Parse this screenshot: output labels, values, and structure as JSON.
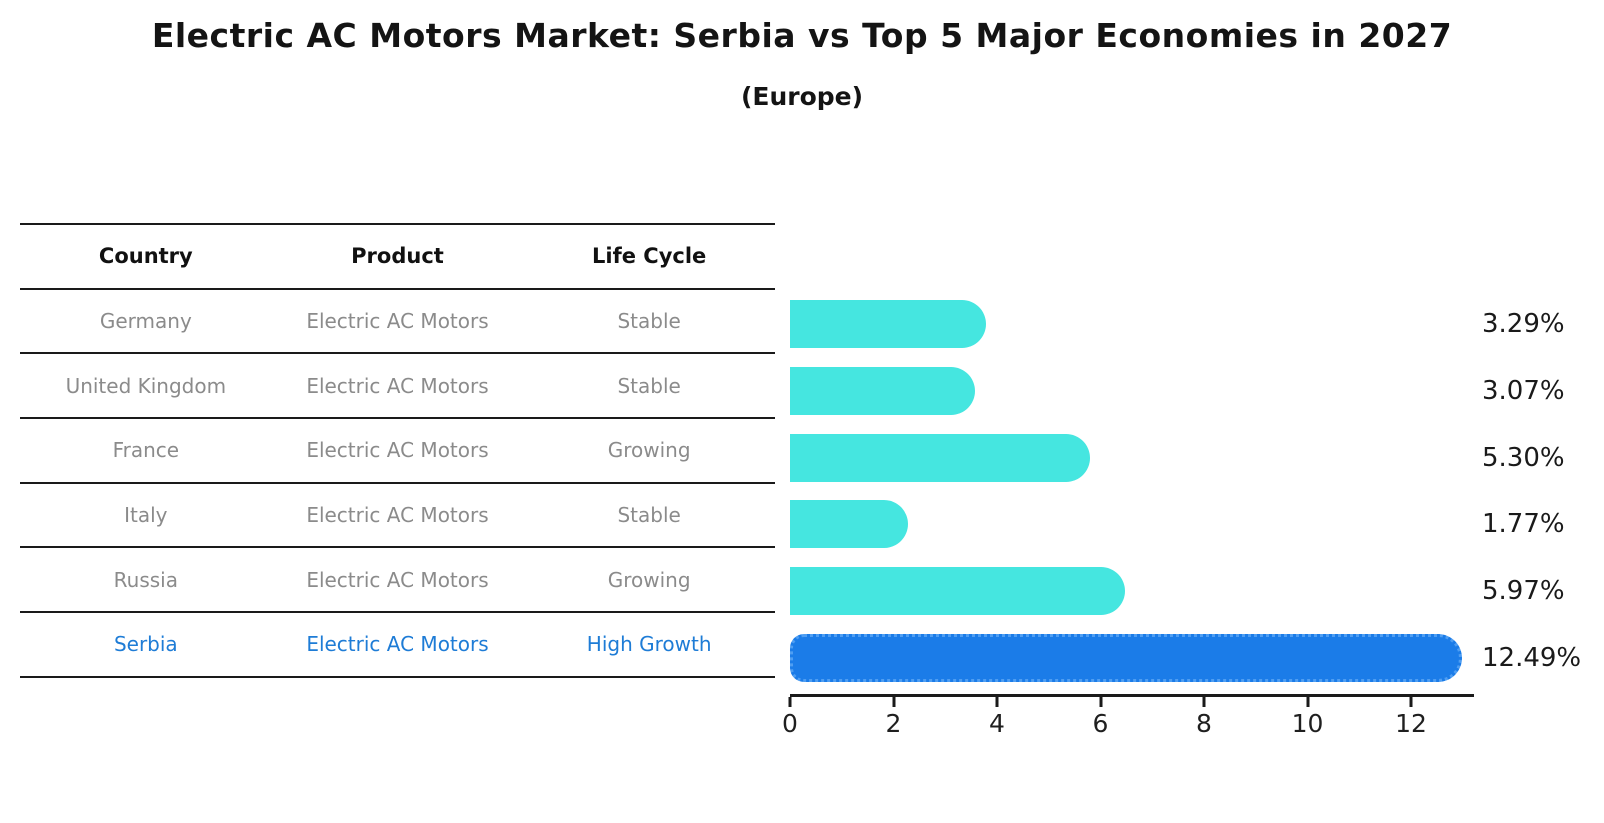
{
  "title": "Electric AC Motors Market: Serbia vs Top 5 Major Economies in 2027",
  "subtitle": "(Europe)",
  "table": {
    "headers": [
      "Country",
      "Product",
      "Life Cycle"
    ],
    "rows": [
      {
        "country": "Germany",
        "product": "Electric AC Motors",
        "life_cycle": "Stable"
      },
      {
        "country": "United Kingdom",
        "product": "Electric AC Motors",
        "life_cycle": "Stable"
      },
      {
        "country": "France",
        "product": "Electric AC Motors",
        "life_cycle": "Growing"
      },
      {
        "country": "Italy",
        "product": "Electric AC Motors",
        "life_cycle": "Stable"
      },
      {
        "country": "Russia",
        "product": "Electric AC Motors",
        "life_cycle": "Growing"
      },
      {
        "country": "Serbia",
        "product": "Electric AC Motors",
        "life_cycle": "High Growth"
      }
    ]
  },
  "chart_data": {
    "type": "bar",
    "orientation": "horizontal",
    "title": "Electric AC Motors Market: Serbia vs Top 5 Major Economies in 2027",
    "subtitle": "(Europe)",
    "categories": [
      "Germany",
      "United Kingdom",
      "France",
      "Italy",
      "Russia",
      "Serbia"
    ],
    "values": [
      3.29,
      3.07,
      5.3,
      1.77,
      5.97,
      12.49
    ],
    "labels": [
      "3.29%",
      "3.07%",
      "5.30%",
      "1.77%",
      "5.97%",
      "12.49%"
    ],
    "x_ticks": [
      0,
      2,
      4,
      6,
      8,
      10,
      12
    ],
    "xlim": [
      0,
      13.14
    ],
    "xlabel": "",
    "ylabel": "",
    "grid": false,
    "legend": "none",
    "highlight_index": 5
  },
  "colors": {
    "bar_color": "#45E6E0",
    "highlight_bar_color": "#1B7CE8",
    "highlight_text_color": "#1E7CD6",
    "axis_color": "#1a1a1a",
    "muted_text_color": "#8B8B8B"
  }
}
